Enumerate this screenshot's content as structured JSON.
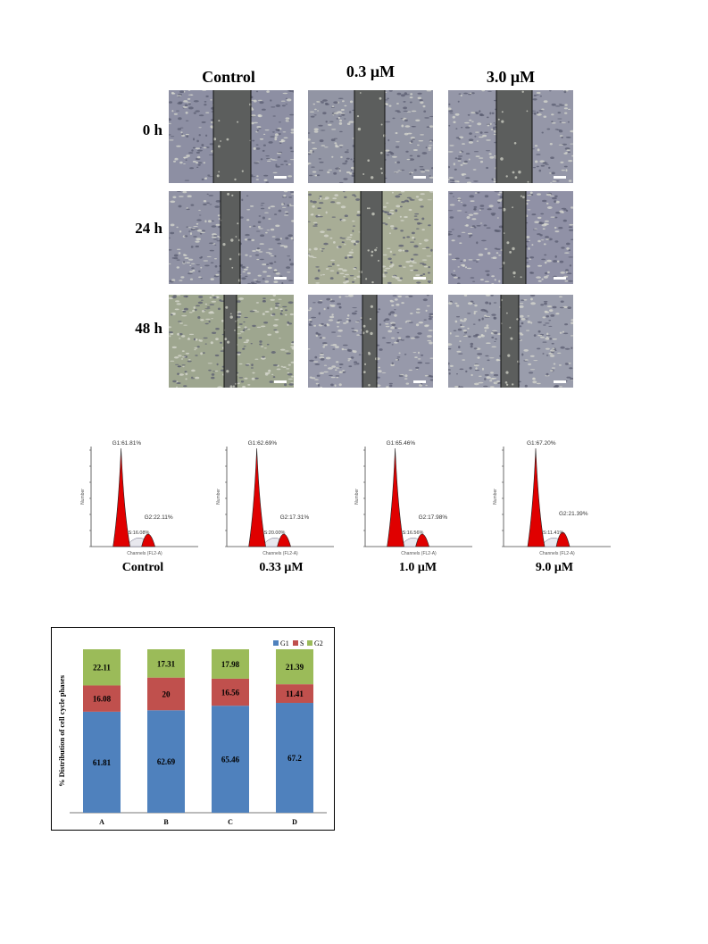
{
  "wound_assay": {
    "columns": [
      "Control",
      "0.3 μM",
      "3.0 μM"
    ],
    "rows": [
      "0 h",
      "24 h",
      "48 h"
    ]
  },
  "histograms": [
    {
      "label": "Control",
      "g1": "G1:61.81%",
      "s": "S:16.08%",
      "g2": "G2:22.11%",
      "axis_x": "Channels (FL2-A)",
      "axis_y": "Number"
    },
    {
      "label": "0.33 μM",
      "g1": "G1:62.69%",
      "s": "S:20.00%",
      "g2": "G2:17.31%",
      "axis_x": "Channels (FL2-A)",
      "axis_y": "Number"
    },
    {
      "label": "1.0 μM",
      "g1": "G1:65.46%",
      "s": "S:16.56%",
      "g2": "G2:17.98%",
      "axis_x": "Channels (FL2-A)",
      "axis_y": "Number"
    },
    {
      "label": "9.0 μM",
      "g1": "G1:67.20%",
      "s": "S:11.41%",
      "g2": "G2:21.39%",
      "axis_x": "Channels (FL2-A)",
      "axis_y": "Number"
    }
  ],
  "chart_data": {
    "type": "bar",
    "stacked": true,
    "categories": [
      "A",
      "B",
      "C",
      "D"
    ],
    "series": [
      {
        "name": "G1",
        "color": "#4f81bd",
        "values": [
          61.81,
          62.69,
          65.46,
          67.2
        ]
      },
      {
        "name": "S",
        "color": "#c0504d",
        "values": [
          16.08,
          20,
          16.56,
          11.41
        ]
      },
      {
        "name": "G2",
        "color": "#9bbb59",
        "values": [
          22.11,
          17.31,
          17.98,
          21.39
        ]
      }
    ],
    "value_labels": [
      [
        "61.81",
        "16.08",
        "22.11"
      ],
      [
        "62.69",
        "20",
        "17.31"
      ],
      [
        "65.46",
        "16.56",
        "17.98"
      ],
      [
        "67.2",
        "11.41",
        "21.39"
      ]
    ],
    "ylabel": "% Distribution of cell cycle phases",
    "xlabel": "",
    "ylim": [
      0,
      100
    ],
    "legend": "top-right",
    "grid": false
  }
}
